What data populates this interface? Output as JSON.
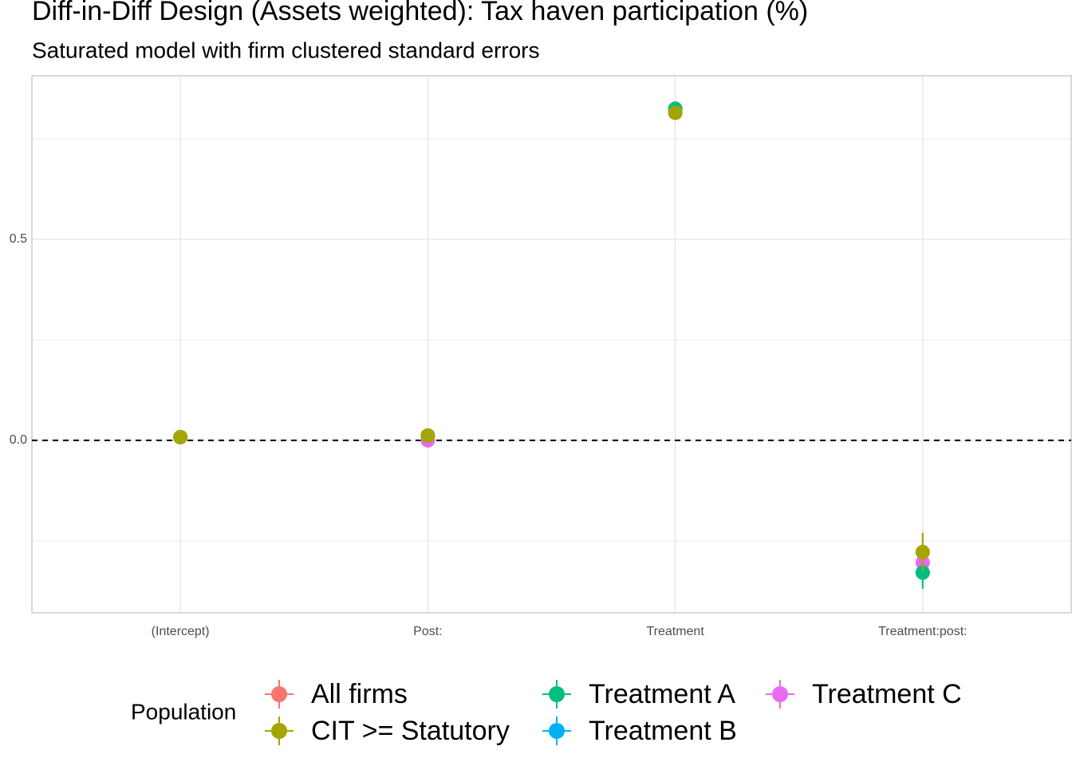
{
  "chart_data": {
    "type": "pointrange",
    "title": "Diff-in-Diff Design (Assets weighted): Tax haven participation (%)",
    "subtitle": "Saturated model with firm clustered standard errors",
    "categories": [
      "(Intercept)",
      "Post:",
      "Treatment",
      "Treatment:post:"
    ],
    "ylim": [
      -0.429,
      0.907
    ],
    "yticks": [
      {
        "value": 0,
        "label": "0.0"
      },
      {
        "value": 0.5,
        "label": "0.5"
      }
    ],
    "minor_yticks": [
      -0.25,
      0.25,
      0.75
    ],
    "grid": true,
    "reference_line": 0,
    "legend_title": "Population",
    "legend_position": "bottom",
    "series": [
      {
        "name": "All firms",
        "color": "#F8766D",
        "values": [
          0.008,
          0.012,
          0.815,
          -0.278
        ],
        "errors": [
          0.004,
          0.006,
          0.01,
          0.048
        ]
      },
      {
        "name": "CIT >= Statutory",
        "color": "#A3A500",
        "values": [
          0.008,
          0.012,
          0.815,
          -0.278
        ],
        "errors": [
          0.004,
          0.006,
          0.01,
          0.048
        ]
      },
      {
        "name": "Treatment A",
        "color": "#00BF7D",
        "values": [
          0.008,
          0.012,
          0.825,
          -0.329
        ],
        "errors": [
          0.004,
          0.006,
          0.01,
          0.04
        ]
      },
      {
        "name": "Treatment B",
        "color": "#00B0F6",
        "values": [
          0.008,
          0.012,
          0.825,
          -0.329
        ],
        "errors": [
          0.004,
          0.006,
          0.01,
          0.04
        ]
      },
      {
        "name": "Treatment C",
        "color": "#E76BF3",
        "values": [
          0.008,
          0.0,
          0.815,
          -0.304
        ],
        "errors": [
          0.004,
          0.006,
          0.01,
          0.02
        ]
      }
    ]
  }
}
